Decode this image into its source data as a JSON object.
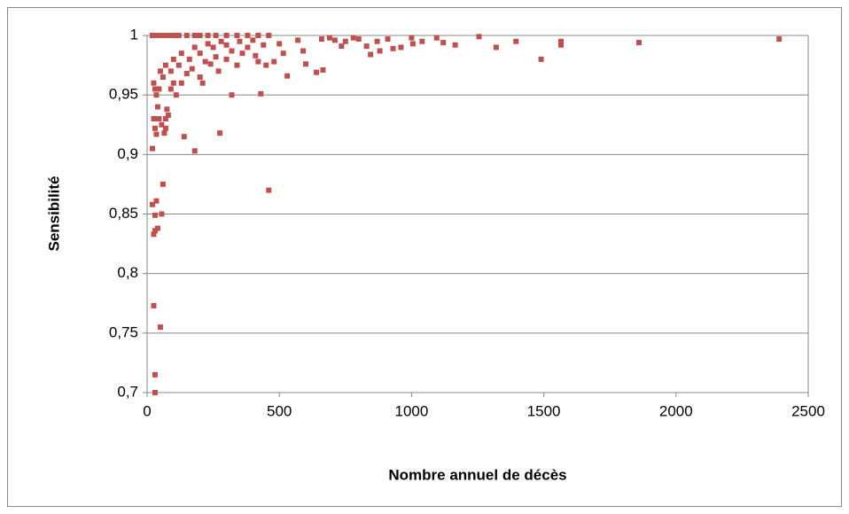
{
  "chart_data": {
    "type": "scatter",
    "xlabel": "Nombre annuel de décès",
    "ylabel": "Sensibilité",
    "color": "#c0504d",
    "grid": true,
    "xlim": [
      0,
      2500
    ],
    "xticks": [
      0,
      500,
      1000,
      1500,
      2000,
      2500
    ],
    "ylim": [
      0.7,
      1
    ],
    "yticks": [
      {
        "value": 0.7,
        "label": "0,7"
      },
      {
        "value": 0.75,
        "label": "0,75"
      },
      {
        "value": 0.8,
        "label": "0,8"
      },
      {
        "value": 0.85,
        "label": "0,85"
      },
      {
        "value": 0.9,
        "label": "0,9"
      },
      {
        "value": 0.95,
        "label": "0,95"
      },
      1
    ],
    "x": [
      2390,
      1860,
      1565,
      1565,
      1490,
      1395,
      1320,
      1255,
      1165,
      1120,
      1095,
      1040,
      1000,
      960,
      1005,
      930,
      910,
      880,
      870,
      845,
      830,
      800,
      780,
      750,
      735,
      710,
      690,
      660,
      665,
      640,
      600,
      590,
      570,
      530,
      515,
      500,
      480,
      460,
      430,
      410,
      320,
      275,
      180,
      140,
      270,
      240,
      210,
      100,
      75,
      70,
      60,
      55,
      50,
      35,
      30,
      40,
      30,
      25,
      20,
      25,
      30,
      30,
      20,
      25,
      30,
      35,
      45,
      55,
      65,
      70,
      80,
      40,
      35,
      45,
      25,
      60,
      90,
      120,
      160,
      200,
      250,
      300,
      350,
      400,
      30,
      50,
      70,
      100,
      130,
      180,
      230,
      280,
      20,
      40,
      60,
      80,
      100,
      120,
      150,
      180,
      200,
      230,
      260,
      300,
      340,
      380,
      420,
      460,
      130,
      150,
      170,
      220,
      260,
      320,
      380,
      440,
      360,
      420,
      450,
      300,
      340,
      200,
      110,
      90
    ],
    "values": [
      0.997,
      0.994,
      0.995,
      0.992,
      0.98,
      0.995,
      0.99,
      0.999,
      0.992,
      0.994,
      0.998,
      0.995,
      0.998,
      0.99,
      0.993,
      0.989,
      0.997,
      0.987,
      0.995,
      0.984,
      0.991,
      0.997,
      0.998,
      0.995,
      0.991,
      0.996,
      0.998,
      0.997,
      0.971,
      0.969,
      0.976,
      0.987,
      0.996,
      0.966,
      0.985,
      0.993,
      0.978,
      0.87,
      0.951,
      0.983,
      0.95,
      0.918,
      0.903,
      0.915,
      0.97,
      0.976,
      0.96,
      0.96,
      0.938,
      0.93,
      0.875,
      0.85,
      0.755,
      0.861,
      0.836,
      0.838,
      0.849,
      0.833,
      0.858,
      0.773,
      0.715,
      0.7,
      0.905,
      0.93,
      0.922,
      0.917,
      0.93,
      0.925,
      0.918,
      0.922,
      0.933,
      0.94,
      0.95,
      0.955,
      0.96,
      0.965,
      0.97,
      0.975,
      0.98,
      0.985,
      0.99,
      0.992,
      0.995,
      0.996,
      0.955,
      0.97,
      0.975,
      0.98,
      0.985,
      0.99,
      0.993,
      0.995,
      1,
      1,
      1,
      1,
      1,
      1,
      1,
      1,
      1,
      1,
      1,
      1,
      1,
      1,
      1,
      1,
      0.96,
      0.968,
      0.972,
      0.978,
      0.982,
      0.987,
      0.99,
      0.992,
      0.985,
      0.978,
      0.975,
      0.98,
      0.975,
      0.965,
      0.95,
      0.955
    ]
  }
}
